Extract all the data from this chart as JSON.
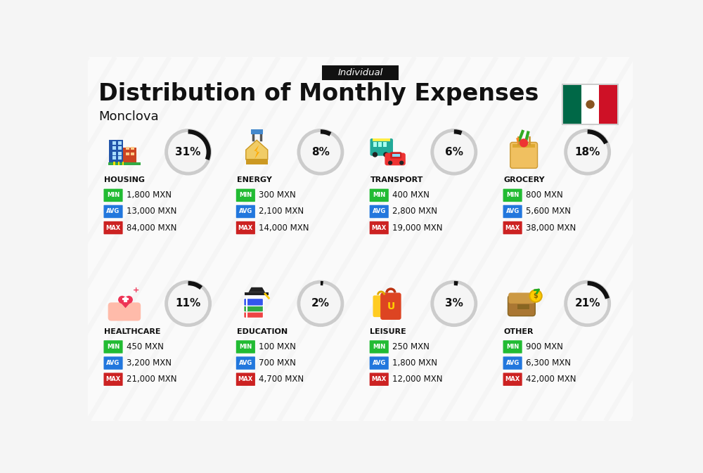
{
  "title": "Distribution of Monthly Expenses",
  "subtitle": "Individual",
  "city": "Monclova",
  "background_color": "#f5f5f5",
  "categories": [
    {
      "name": "HOUSING",
      "percent": 31,
      "min": "1,800 MXN",
      "avg": "13,000 MXN",
      "max": "84,000 MXN",
      "row": 0,
      "col": 0
    },
    {
      "name": "ENERGY",
      "percent": 8,
      "min": "300 MXN",
      "avg": "2,100 MXN",
      "max": "14,000 MXN",
      "row": 0,
      "col": 1
    },
    {
      "name": "TRANSPORT",
      "percent": 6,
      "min": "400 MXN",
      "avg": "2,800 MXN",
      "max": "19,000 MXN",
      "row": 0,
      "col": 2
    },
    {
      "name": "GROCERY",
      "percent": 18,
      "min": "800 MXN",
      "avg": "5,600 MXN",
      "max": "38,000 MXN",
      "row": 0,
      "col": 3
    },
    {
      "name": "HEALTHCARE",
      "percent": 11,
      "min": "450 MXN",
      "avg": "3,200 MXN",
      "max": "21,000 MXN",
      "row": 1,
      "col": 0
    },
    {
      "name": "EDUCATION",
      "percent": 2,
      "min": "100 MXN",
      "avg": "700 MXN",
      "max": "4,700 MXN",
      "row": 1,
      "col": 1
    },
    {
      "name": "LEISURE",
      "percent": 3,
      "min": "250 MXN",
      "avg": "1,800 MXN",
      "max": "12,000 MXN",
      "row": 1,
      "col": 2
    },
    {
      "name": "OTHER",
      "percent": 21,
      "min": "900 MXN",
      "avg": "6,300 MXN",
      "max": "42,000 MXN",
      "row": 1,
      "col": 3
    }
  ],
  "min_color": "#22bb33",
  "avg_color": "#2277dd",
  "max_color": "#cc2222",
  "label_text_color": "#ffffff",
  "value_text_color": "#111111",
  "category_text_color": "#111111",
  "circle_bg": "#f5f5f5",
  "circle_border_gray": "#cccccc",
  "arc_color": "#111111",
  "percent_text_color": "#111111",
  "header_bg": "#111111",
  "header_text_color": "#ffffff",
  "title_color": "#111111",
  "flag_green": "#006847",
  "flag_white": "#ffffff",
  "flag_red": "#ce1126",
  "stripe_color": "#e8e8e8"
}
